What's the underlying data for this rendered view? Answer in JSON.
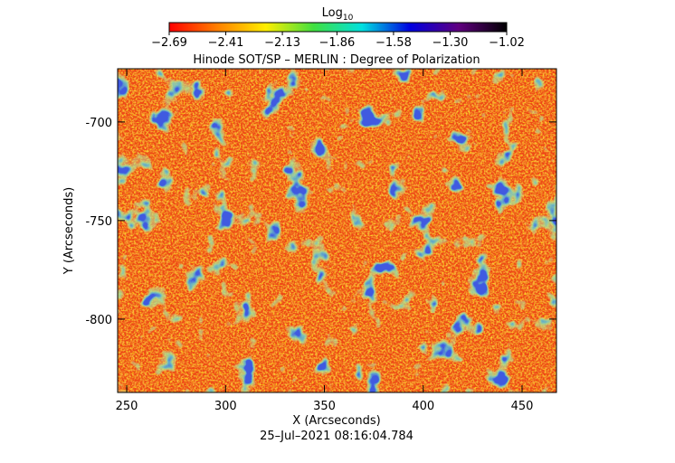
{
  "chart_data": {
    "type": "heatmap",
    "title": "Hinode SOT/SP – MERLIN : Degree of Polarization",
    "x_label": "X (Arcseconds)",
    "y_label": "Y (Arcseconds)",
    "footer": "25–Jul–2021 08:16:04.784",
    "xlim": [
      245.4,
      467.4
    ],
    "xticks": [
      250,
      300,
      350,
      400,
      450
    ],
    "ylim": [
      -837.2,
      -673
    ],
    "yticks": [
      -700,
      -750,
      -800
    ],
    "colorbar": {
      "label": "Log",
      "label_subscript": "10",
      "clim": [
        -2.69,
        -1.02
      ],
      "ticks": [
        {
          "value": -2.69,
          "label": "−2.69"
        },
        {
          "value": -2.41,
          "label": "−2.41"
        },
        {
          "value": -2.13,
          "label": "−2.13"
        },
        {
          "value": -1.86,
          "label": "−1.86"
        },
        {
          "value": -1.58,
          "label": "−1.58"
        },
        {
          "value": -1.3,
          "label": "−1.30"
        },
        {
          "value": -1.02,
          "label": "−1.02"
        }
      ],
      "colors": [
        "#ff0000",
        "#ff8000",
        "#ffee00",
        "#40e040",
        "#00e0e0",
        "#0000e0",
        "#600080",
        "#000000"
      ]
    }
  }
}
